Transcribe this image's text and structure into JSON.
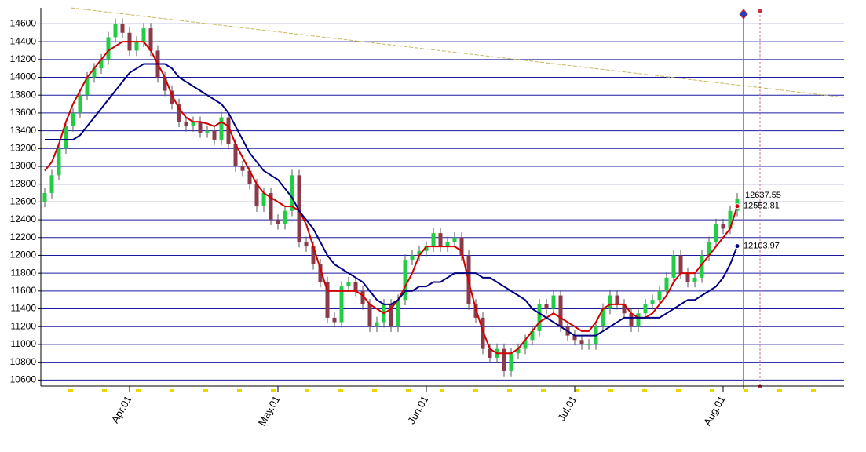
{
  "chart_data": {
    "type": "candlestick",
    "up_color": "#22cc44",
    "down_color": "#8b3a4a",
    "grid": true,
    "grid_color": "#1a1aa0",
    "ylim": [
      10550,
      14780
    ],
    "yticks": [
      10600,
      10800,
      11000,
      11200,
      11400,
      11600,
      11800,
      12000,
      12200,
      12400,
      12600,
      12800,
      13000,
      13200,
      13400,
      13600,
      13800,
      14000,
      14200,
      14400,
      14600
    ],
    "categories": [
      null,
      null,
      null,
      null,
      null,
      null,
      null,
      null,
      null,
      null,
      null,
      null,
      "Apr.01",
      null,
      null,
      null,
      null,
      null,
      null,
      null,
      null,
      null,
      null,
      null,
      null,
      null,
      null,
      null,
      null,
      null,
      null,
      null,
      null,
      "May.01",
      null,
      null,
      null,
      null,
      null,
      null,
      null,
      null,
      null,
      null,
      null,
      null,
      null,
      null,
      null,
      null,
      null,
      null,
      null,
      null,
      "Jun.01",
      null,
      null,
      null,
      null,
      null,
      null,
      null,
      null,
      null,
      null,
      null,
      null,
      null,
      null,
      null,
      null,
      null,
      null,
      null,
      null,
      "Jul.01",
      null,
      null,
      null,
      null,
      null,
      null,
      null,
      null,
      null,
      null,
      null,
      null,
      null,
      null,
      null,
      null,
      null,
      null,
      null,
      null,
      "Aug.01",
      null,
      null
    ],
    "open": [
      12600,
      12700,
      12900,
      13200,
      13450,
      13600,
      13800,
      14000,
      14100,
      14200,
      14450,
      14600,
      14500,
      14300,
      14400,
      14550,
      14300,
      14000,
      13850,
      13700,
      13500,
      13450,
      13500,
      13380,
      13400,
      13300,
      13550,
      13250,
      13000,
      12950,
      12800,
      12550,
      12700,
      12400,
      12350,
      12500,
      12900,
      12150,
      12100,
      11900,
      11700,
      11300,
      11250,
      11650,
      11700,
      11600,
      11450,
      11200,
      11250,
      11450,
      11200,
      11500,
      11950,
      12000,
      12050,
      12100,
      12250,
      12100,
      12150,
      12200,
      12000,
      11450,
      11300,
      10950,
      10850,
      10950,
      10700,
      10900,
      10950,
      11050,
      11150,
      11450,
      11400,
      11550,
      11200,
      11100,
      11050,
      11000,
      11000,
      11200,
      11400,
      11550,
      11450,
      11350,
      11200,
      11350,
      11450,
      11500,
      11600,
      11750,
      12000,
      11800,
      11700,
      11750,
      12000,
      12150,
      12350,
      12300,
      12500
    ],
    "high": [
      12760,
      12960,
      13260,
      13510,
      13660,
      13860,
      14060,
      14160,
      14260,
      14510,
      14660,
      14660,
      14560,
      14460,
      14610,
      14610,
      14360,
      14060,
      13910,
      13760,
      13560,
      13560,
      13560,
      13460,
      13460,
      13610,
      13610,
      13310,
      13060,
      13010,
      12860,
      12760,
      12760,
      12460,
      12560,
      12960,
      12960,
      12210,
      12160,
      11960,
      11760,
      11360,
      11710,
      11760,
      11760,
      11660,
      11510,
      11310,
      11510,
      11510,
      11560,
      12010,
      12060,
      12110,
      12160,
      12310,
      12310,
      12210,
      12260,
      12260,
      12060,
      11510,
      11360,
      11010,
      11010,
      11010,
      10960,
      11010,
      11110,
      11210,
      11510,
      11510,
      11610,
      11610,
      11260,
      11160,
      11110,
      11060,
      11260,
      11460,
      11610,
      11610,
      11510,
      11410,
      11410,
      11510,
      11560,
      11660,
      11810,
      12060,
      12060,
      11860,
      11810,
      12060,
      12210,
      12410,
      12410,
      12560,
      12700
    ],
    "low": [
      12540,
      12640,
      12840,
      13140,
      13390,
      13540,
      13740,
      13940,
      14040,
      14140,
      14390,
      14440,
      14240,
      14240,
      14340,
      14240,
      13940,
      13790,
      13640,
      13440,
      13390,
      13390,
      13320,
      13320,
      13240,
      13240,
      13190,
      12940,
      12890,
      12740,
      12490,
      12490,
      12340,
      12290,
      12290,
      12440,
      12090,
      12040,
      11840,
      11640,
      11240,
      11190,
      11190,
      11590,
      11540,
      11390,
      11140,
      11140,
      11190,
      11140,
      11140,
      11440,
      11890,
      11940,
      11990,
      12040,
      12040,
      12040,
      12090,
      11940,
      11390,
      11240,
      10890,
      10790,
      10790,
      10640,
      10640,
      10840,
      10890,
      10990,
      11090,
      11340,
      11340,
      11140,
      11040,
      10990,
      10940,
      10940,
      10940,
      11140,
      11340,
      11390,
      11290,
      11140,
      11140,
      11290,
      11390,
      11440,
      11540,
      11690,
      11740,
      11640,
      11640,
      11690,
      11940,
      12090,
      12240,
      12240,
      12440
    ],
    "close": [
      12700,
      12900,
      13200,
      13450,
      13600,
      13800,
      14000,
      14100,
      14200,
      14450,
      14600,
      14500,
      14300,
      14400,
      14550,
      14300,
      14000,
      13850,
      13700,
      13500,
      13450,
      13500,
      13380,
      13400,
      13300,
      13550,
      13250,
      13000,
      12950,
      12800,
      12550,
      12700,
      12400,
      12350,
      12500,
      12900,
      12150,
      12100,
      11900,
      11700,
      11300,
      11250,
      11650,
      11700,
      11600,
      11450,
      11200,
      11250,
      11450,
      11200,
      11500,
      11950,
      12000,
      12050,
      12100,
      12250,
      12100,
      12150,
      12200,
      12000,
      11450,
      11300,
      10950,
      10850,
      10950,
      10700,
      10900,
      10950,
      11050,
      11150,
      11450,
      11400,
      11550,
      11200,
      11100,
      11050,
      11000,
      11000,
      11200,
      11400,
      11550,
      11450,
      11350,
      11200,
      11350,
      11450,
      11500,
      11600,
      11750,
      12000,
      11800,
      11700,
      11750,
      12000,
      12150,
      12350,
      12300,
      12500,
      12637.55
    ],
    "series": [
      {
        "color": "#d00000",
        "values": [
          12950,
          13050,
          13250,
          13500,
          13700,
          13850,
          14000,
          14100,
          14200,
          14300,
          14350,
          14400,
          14400,
          14400,
          14400,
          14300,
          14150,
          14000,
          13800,
          13650,
          13550,
          13500,
          13500,
          13480,
          13450,
          13500,
          13450,
          13250,
          13100,
          12950,
          12800,
          12700,
          12650,
          12600,
          12550,
          12550,
          12500,
          12350,
          12100,
          11850,
          11600,
          11600,
          11600,
          11600,
          11600,
          11550,
          11450,
          11400,
          11350,
          11400,
          11500,
          11650,
          11800,
          12000,
          12100,
          12100,
          12100,
          12100,
          12100,
          12050,
          11700,
          11400,
          11150,
          10950,
          10900,
          10900,
          10900,
          10950,
          11050,
          11150,
          11250,
          11300,
          11350,
          11300,
          11250,
          11200,
          11150,
          11150,
          11250,
          11400,
          11450,
          11450,
          11450,
          11350,
          11300,
          11300,
          11350,
          11450,
          11550,
          11700,
          11800,
          11800,
          11800,
          11900,
          12000,
          12100,
          12200,
          12300,
          12552.81
        ]
      },
      {
        "color": "#000080",
        "values": [
          13300,
          13300,
          13300,
          13300,
          13300,
          13350,
          13450,
          13550,
          13650,
          13750,
          13850,
          13950,
          14050,
          14100,
          14150,
          14150,
          14150,
          14150,
          14100,
          14000,
          13950,
          13900,
          13850,
          13800,
          13750,
          13700,
          13600,
          13450,
          13300,
          13150,
          13050,
          12950,
          12900,
          12850,
          12750,
          12650,
          12500,
          12400,
          12300,
          12150,
          12000,
          11900,
          11850,
          11800,
          11750,
          11700,
          11600,
          11500,
          11450,
          11450,
          11500,
          11600,
          11600,
          11650,
          11650,
          11700,
          11700,
          11750,
          11800,
          11800,
          11800,
          11800,
          11750,
          11750,
          11700,
          11650,
          11600,
          11550,
          11500,
          11400,
          11350,
          11300,
          11250,
          11200,
          11150,
          11100,
          11100,
          11100,
          11100,
          11150,
          11200,
          11250,
          11300,
          11300,
          11300,
          11300,
          11300,
          11300,
          11350,
          11400,
          11450,
          11500,
          11500,
          11550,
          11600,
          11650,
          11750,
          11900,
          12103.97
        ]
      }
    ]
  }
}
